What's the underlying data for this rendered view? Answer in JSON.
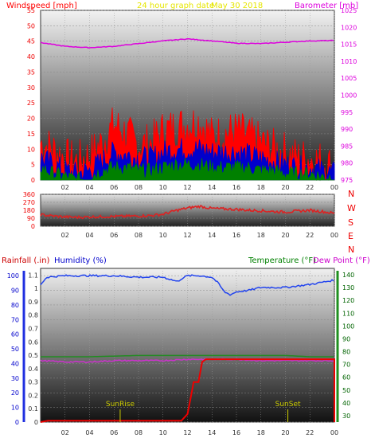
{
  "header": {
    "wind_label": "Windspeed [mph]",
    "graph_title": "24 hour graph date",
    "date": "May 30 2018",
    "baro_label": "Barometer [mb]"
  },
  "middle": {
    "compass_letters": [
      "N",
      "W",
      "S",
      "E",
      "N"
    ]
  },
  "bottom_labels": {
    "rain": "Rainfall (.in)",
    "humidity": "Humidity (%)",
    "temp": "Temperature (°F)",
    "dew": "Dew Point (°F)",
    "sunrise": "SunRise",
    "sunset": "SunSet"
  },
  "colors": {
    "wind_gust": "#ff0000",
    "wind_avg": "#0000cc",
    "wind_low": "#008000",
    "baro": "#dd00dd",
    "direction": "#dd2222",
    "rain": "#ee0000",
    "humidity": "#2244ee",
    "temperature": "#228b22",
    "dewpoint": "#cc33cc",
    "sun": "#cccc00"
  },
  "chart_data": [
    {
      "type": "line",
      "x_ticks": [
        "02",
        "04",
        "06",
        "08",
        "10",
        "12",
        "14",
        "16",
        "18",
        "20",
        "22",
        "00"
      ],
      "left_axis": {
        "label": "Windspeed [mph]",
        "ticks": [
          0,
          5,
          10,
          15,
          20,
          25,
          30,
          35,
          40,
          45,
          50,
          55
        ],
        "ylim": [
          0,
          55
        ]
      },
      "right_axis": {
        "label": "Barometer [mb]",
        "ticks": [
          975,
          980,
          985,
          990,
          995,
          1000,
          1005,
          1010,
          1015,
          1020,
          1025
        ],
        "ylim": [
          975,
          1025
        ]
      },
      "series": [
        {
          "name": "Windspeed gust",
          "axis": "left",
          "hours": [
            0,
            1,
            2,
            3,
            4,
            5,
            6,
            7,
            8,
            9,
            10,
            11,
            12,
            13,
            14,
            15,
            16,
            17,
            18,
            19,
            20,
            21,
            22,
            23,
            24
          ],
          "values": [
            12,
            10,
            7,
            6,
            8,
            12,
            18,
            15,
            11,
            12,
            16,
            17,
            18,
            19,
            14,
            15,
            16,
            14,
            12,
            10,
            9,
            7,
            7,
            6,
            4
          ]
        },
        {
          "name": "Windspeed average",
          "axis": "left",
          "hours": [
            0,
            1,
            2,
            3,
            4,
            5,
            6,
            7,
            8,
            9,
            10,
            11,
            12,
            13,
            14,
            15,
            16,
            17,
            18,
            19,
            20,
            21,
            22,
            23,
            24
          ],
          "values": [
            7,
            5,
            3,
            2,
            3,
            6,
            9,
            8,
            7,
            7,
            9,
            10,
            10,
            10,
            9,
            9,
            9,
            8,
            7,
            6,
            5,
            4,
            4,
            3,
            2
          ]
        },
        {
          "name": "Windspeed low",
          "axis": "left",
          "hours": [
            0,
            1,
            2,
            3,
            4,
            5,
            6,
            7,
            8,
            9,
            10,
            11,
            12,
            13,
            14,
            15,
            16,
            17,
            18,
            19,
            20,
            21,
            22,
            23,
            24
          ],
          "values": [
            4,
            2,
            1,
            0,
            1,
            3,
            4,
            4,
            3,
            3,
            4,
            5,
            5,
            5,
            4,
            4,
            4,
            4,
            3,
            3,
            2,
            2,
            2,
            1,
            1
          ]
        },
        {
          "name": "Barometer",
          "axis": "right",
          "hours": [
            0,
            2,
            4,
            6,
            8,
            10,
            12,
            14,
            16,
            18,
            20,
            22,
            24
          ],
          "values": [
            1015.5,
            1014.4,
            1014.0,
            1014.4,
            1015.2,
            1016.0,
            1016.6,
            1016.0,
            1015.3,
            1015.2,
            1015.6,
            1016.0,
            1016.1
          ]
        }
      ]
    },
    {
      "type": "line",
      "x_ticks": [
        "02",
        "04",
        "06",
        "08",
        "10",
        "12",
        "14",
        "16",
        "18",
        "20",
        "22",
        "00"
      ],
      "left_axis": {
        "ticks": [
          0,
          90,
          180,
          270,
          360
        ],
        "ylim": [
          0,
          360
        ]
      },
      "right_axis": {
        "ticks": [
          "N",
          "E",
          "S",
          "W",
          "N"
        ]
      },
      "series": [
        {
          "name": "Wind direction",
          "hours": [
            0,
            1,
            2,
            3,
            4,
            5,
            6,
            7,
            8,
            9,
            10,
            11,
            12,
            13,
            14,
            15,
            16,
            17,
            18,
            19,
            20,
            21,
            22,
            23,
            24
          ],
          "values": [
            130,
            115,
            105,
            100,
            105,
            108,
            110,
            112,
            115,
            120,
            135,
            175,
            205,
            225,
            200,
            195,
            190,
            180,
            175,
            165,
            160,
            170,
            180,
            165,
            145
          ]
        }
      ]
    },
    {
      "type": "line",
      "x_ticks": [
        "02",
        "04",
        "06",
        "08",
        "10",
        "12",
        "14",
        "16",
        "18",
        "20",
        "22",
        "00"
      ],
      "rain_axis": {
        "label": "Rainfall (.in)",
        "ticks": [
          0,
          0.1,
          0.2,
          0.3,
          0.4,
          0.5,
          0.6,
          0.7,
          0.8,
          0.9,
          1,
          1.1
        ],
        "ylim": [
          0,
          1.15
        ]
      },
      "humidity_axis": {
        "label": "Humidity (%)",
        "ticks": [
          0,
          10,
          20,
          30,
          40,
          50,
          60,
          70,
          80,
          90,
          100
        ],
        "ylim": [
          0,
          105
        ]
      },
      "temp_axis": {
        "label": "Temperature (°F)",
        "ticks": [
          30,
          40,
          50,
          60,
          70,
          80,
          90,
          100,
          110,
          120,
          130,
          140
        ],
        "ylim": [
          25,
          145
        ]
      },
      "series": [
        {
          "name": "Humidity",
          "axis": "humidity",
          "hours": [
            0,
            0.5,
            2,
            4,
            6,
            8,
            10,
            11.2,
            11.5,
            12,
            13,
            14,
            14.5,
            15,
            15.5,
            16,
            17,
            18,
            20,
            22,
            24
          ],
          "values": [
            94,
            99,
            100,
            100,
            100,
            99,
            99,
            96,
            98,
            100,
            100,
            99,
            95,
            89,
            87,
            89,
            90,
            92,
            92,
            94,
            97
          ]
        },
        {
          "name": "Temperature",
          "axis": "temp",
          "hours": [
            0,
            4,
            8,
            12,
            13,
            14,
            16,
            18,
            20,
            22,
            24
          ],
          "values": [
            76,
            76,
            77,
            77,
            77,
            77,
            77,
            77,
            77,
            76,
            76
          ]
        },
        {
          "name": "Dew Point",
          "axis": "temp",
          "hours": [
            0,
            2,
            4,
            6,
            8,
            10,
            12,
            14,
            16,
            18,
            20,
            22,
            24
          ],
          "values": [
            73,
            72,
            72,
            73,
            73,
            73,
            74,
            74,
            74,
            73,
            73,
            73,
            73
          ]
        },
        {
          "name": "Rainfall",
          "axis": "rain",
          "hours": [
            0,
            0.6,
            10,
            11.5,
            12,
            12.3,
            12.5,
            12.9,
            13.2,
            13.5,
            24,
            24.0
          ],
          "values": [
            0,
            0.01,
            0.01,
            0.01,
            0.06,
            0.2,
            0.3,
            0.3,
            0.45,
            0.47,
            0.47,
            0
          ]
        }
      ],
      "markers": [
        {
          "label": "SunRise",
          "hour": 6.5
        },
        {
          "label": "SunSet",
          "hour": 20.2
        }
      ]
    }
  ]
}
